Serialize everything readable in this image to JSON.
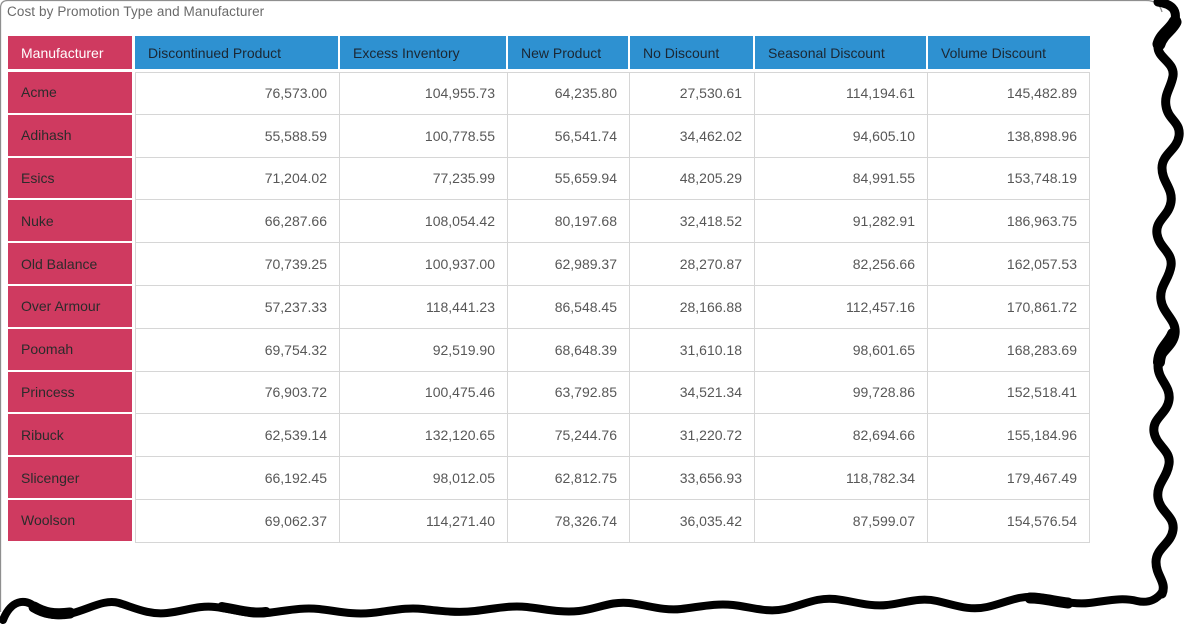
{
  "title": "Cost by Promotion Type and Manufacturer",
  "colors": {
    "column_header_blue": "#2e91d1",
    "row_header_pink": "#cf3a60",
    "title_text": "#6a6a6a",
    "column_header_text": "#1b2733",
    "row_label_text": "#2b2b2b",
    "value_text": "#575757",
    "grid_line": "#d6d6d6",
    "torn_edge": "#000000"
  },
  "chart_data": {
    "type": "table",
    "title": "Cost by Promotion Type and Manufacturer",
    "columns": [
      "Manufacturer",
      "Discontinued Product",
      "Excess Inventory",
      "New Product",
      "No Discount",
      "Seasonal Discount",
      "Volume Discount"
    ],
    "rows": [
      {
        "manufacturer": "Acme",
        "values": [
          "76,573.00",
          "104,955.73",
          "64,235.80",
          "27,530.61",
          "114,194.61",
          "145,482.89"
        ]
      },
      {
        "manufacturer": "Adihash",
        "values": [
          "55,588.59",
          "100,778.55",
          "56,541.74",
          "34,462.02",
          "94,605.10",
          "138,898.96"
        ]
      },
      {
        "manufacturer": "Esics",
        "values": [
          "71,204.02",
          "77,235.99",
          "55,659.94",
          "48,205.29",
          "84,991.55",
          "153,748.19"
        ]
      },
      {
        "manufacturer": "Nuke",
        "values": [
          "66,287.66",
          "108,054.42",
          "80,197.68",
          "32,418.52",
          "91,282.91",
          "186,963.75"
        ]
      },
      {
        "manufacturer": "Old Balance",
        "values": [
          "70,739.25",
          "100,937.00",
          "62,989.37",
          "28,270.87",
          "82,256.66",
          "162,057.53"
        ]
      },
      {
        "manufacturer": "Over Armour",
        "values": [
          "57,237.33",
          "118,441.23",
          "86,548.45",
          "28,166.88",
          "112,457.16",
          "170,861.72"
        ]
      },
      {
        "manufacturer": "Poomah",
        "values": [
          "69,754.32",
          "92,519.90",
          "68,648.39",
          "31,610.18",
          "98,601.65",
          "168,283.69"
        ]
      },
      {
        "manufacturer": "Princess",
        "values": [
          "76,903.72",
          "100,475.46",
          "63,792.85",
          "34,521.34",
          "99,728.86",
          "152,518.41"
        ]
      },
      {
        "manufacturer": "Ribuck",
        "values": [
          "62,539.14",
          "132,120.65",
          "75,244.76",
          "31,220.72",
          "82,694.66",
          "155,184.96"
        ]
      },
      {
        "manufacturer": "Slicenger",
        "values": [
          "66,192.45",
          "98,012.05",
          "62,812.75",
          "33,656.93",
          "118,782.34",
          "179,467.49"
        ]
      },
      {
        "manufacturer": "Woolson",
        "values": [
          "69,062.37",
          "114,271.40",
          "78,326.74",
          "36,035.42",
          "87,599.07",
          "154,576.54"
        ]
      }
    ]
  }
}
